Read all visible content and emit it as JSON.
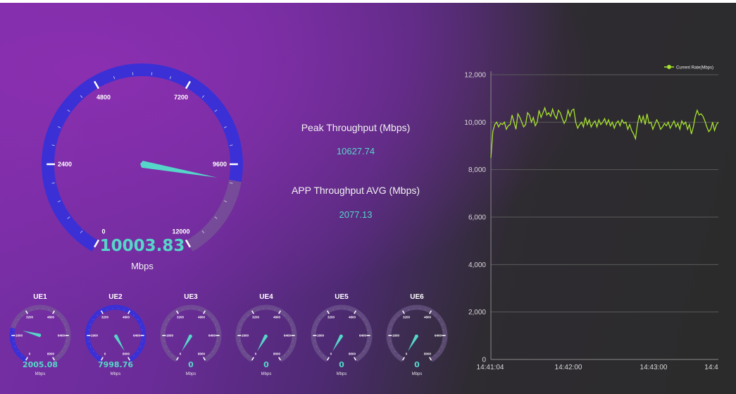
{
  "main_gauge": {
    "value": "10003.83",
    "value_num": 10003.83,
    "unit": "Mbps",
    "ticks": [
      "0",
      "2400",
      "4800",
      "7200",
      "9600",
      "12000"
    ],
    "max": 12000
  },
  "kpis": {
    "peak_label": "Peak Throughput (Mbps)",
    "peak_value": "10627.74",
    "avg_label": "APP Throughput AVG (Mbps)",
    "avg_value": "2077.13"
  },
  "ues": [
    {
      "name": "UE1",
      "value": "2005.08",
      "value_num": 2005.08,
      "unit": "Mbps"
    },
    {
      "name": "UE2",
      "value": "7998.76",
      "value_num": 7998.76,
      "unit": "Mbps"
    },
    {
      "name": "UE3",
      "value": "0",
      "value_num": 0,
      "unit": "Mbps"
    },
    {
      "name": "UE4",
      "value": "0",
      "value_num": 0,
      "unit": "Mbps"
    },
    {
      "name": "UE5",
      "value": "0",
      "value_num": 0,
      "unit": "Mbps"
    },
    {
      "name": "UE6",
      "value": "0",
      "value_num": 0,
      "unit": "Mbps"
    }
  ],
  "ue_gauge_ticks": [
    "0",
    "1600",
    "3200",
    "4800",
    "6400",
    "8000"
  ],
  "ue_gauge_max": 8000,
  "colors": {
    "accent": "#56d6c9",
    "gauge_blue": "#3b2fd6",
    "line": "#a6e22e",
    "grid": "#5a5a5a"
  },
  "chart_data": {
    "type": "line",
    "title": "",
    "xlabel": "",
    "ylabel": "",
    "legend": "top-right",
    "ylim": [
      0,
      12000
    ],
    "yticks": [
      "0",
      "2,000",
      "4,000",
      "6,000",
      "8,000",
      "10,000",
      "12,000"
    ],
    "xticks": [
      "14:41:04",
      "14:42:00",
      "14:43:00",
      "14:4"
    ],
    "series": [
      {
        "name": "Current Rate(Mbps)",
        "values": [
          8500,
          9600,
          9900,
          10000,
          9800,
          9950,
          9900,
          10000,
          9700,
          9850,
          9900,
          10300,
          10000,
          9700,
          10350,
          10200,
          10000,
          9800,
          9900,
          10400,
          10300,
          10000,
          10200,
          9850,
          10000,
          10500,
          10200,
          10400,
          10600,
          10300,
          10400,
          10250,
          10550,
          10300,
          10150,
          10500,
          10400,
          10150,
          9950,
          10100,
          10500,
          10250,
          10500,
          10550,
          10000,
          9750,
          9900,
          10000,
          9800,
          10200,
          9900,
          10100,
          9800,
          9950,
          10050,
          9800,
          10100,
          9900,
          10000,
          10150,
          9900,
          10100,
          9850,
          10000,
          9750,
          9950,
          10050,
          9850,
          10100,
          9950,
          10000,
          9700,
          9900,
          9650,
          9500,
          9300,
          9900,
          10300,
          10000,
          10250,
          9900,
          10350,
          9950,
          10000,
          9700,
          9900,
          10100,
          9950,
          9700,
          9800,
          9950,
          9850,
          10000,
          9750,
          9900,
          10050,
          9800,
          9950,
          9700,
          10050,
          9900,
          10000,
          9700,
          9900,
          9500,
          9800,
          10250,
          10500,
          10300,
          10350,
          10250,
          10050,
          9800,
          9600,
          9700,
          10000,
          9650,
          9900,
          10000
        ]
      }
    ]
  }
}
